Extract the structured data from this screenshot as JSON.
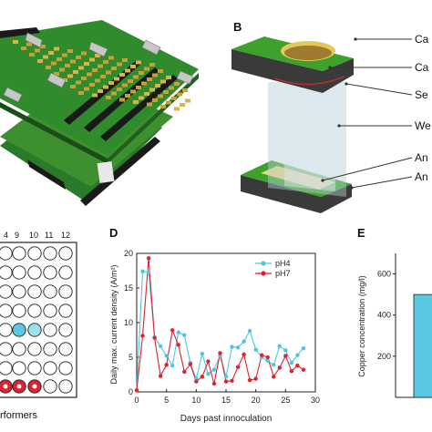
{
  "panel_b": {
    "letter": "B",
    "labels": [
      "Ca",
      "Ca",
      "Se",
      "We",
      "An",
      "An"
    ]
  },
  "panel_c": {
    "column_numbers": [
      "4",
      "9",
      "10",
      "11",
      "12"
    ],
    "caption": "rformers"
  },
  "panel_d": {
    "letter": "D"
  },
  "panel_e": {
    "letter": "E"
  },
  "chart_data": [
    {
      "type": "line",
      "xlabel": "Days past innoculation",
      "ylabel": "Daily max. current density (A/m²)",
      "xlim": [
        0,
        30
      ],
      "ylim": [
        0,
        20
      ],
      "xticks": [
        "0",
        "5",
        "10",
        "15",
        "20",
        "25",
        "30"
      ],
      "yticks": [
        "0",
        "5",
        "10",
        "15",
        "20"
      ],
      "legend_position": "top-right",
      "series": [
        {
          "name": "pH4",
          "color": "#4fc6e0",
          "x": [
            0,
            1,
            2,
            3,
            4,
            5,
            6,
            7,
            8,
            9,
            10,
            11,
            12,
            13,
            14,
            15,
            16,
            17,
            18,
            19,
            20,
            21,
            22,
            23,
            24,
            25,
            26,
            27,
            28
          ],
          "y": [
            0.3,
            17.4,
            17.3,
            7.9,
            6.6,
            5.2,
            3.8,
            8.6,
            8.2,
            4.2,
            1.9,
            5.5,
            2.6,
            3.2,
            5.2,
            2.2,
            6.5,
            6.4,
            7.3,
            8.8,
            6.1,
            5.0,
            4.5,
            3.9,
            6.6,
            6.0,
            4.2,
            5.3,
            6.3
          ]
        },
        {
          "name": "pH7",
          "color": "#e02230",
          "x": [
            0,
            1,
            2,
            3,
            4,
            5,
            6,
            7,
            8,
            9,
            10,
            11,
            12,
            13,
            14,
            15,
            16,
            17,
            18,
            19,
            20,
            21,
            22,
            23,
            24,
            25,
            26,
            27,
            28
          ],
          "y": [
            0.2,
            8.1,
            19.3,
            7.8,
            2.3,
            3.9,
            8.9,
            6.8,
            2.9,
            4.0,
            1.5,
            2.2,
            4.4,
            1.2,
            5.6,
            1.5,
            1.6,
            3.6,
            5.4,
            1.7,
            1.9,
            5.3,
            5.0,
            2.2,
            3.5,
            5.2,
            3.0,
            3.8,
            3.2
          ]
        }
      ]
    },
    {
      "type": "bar",
      "ylabel": "Copper concentration (mg/l)",
      "ylim": [
        0,
        700
      ],
      "yticks": [
        "200",
        "400",
        "600"
      ],
      "values": [
        500
      ],
      "color": "#5bc8e3"
    }
  ]
}
